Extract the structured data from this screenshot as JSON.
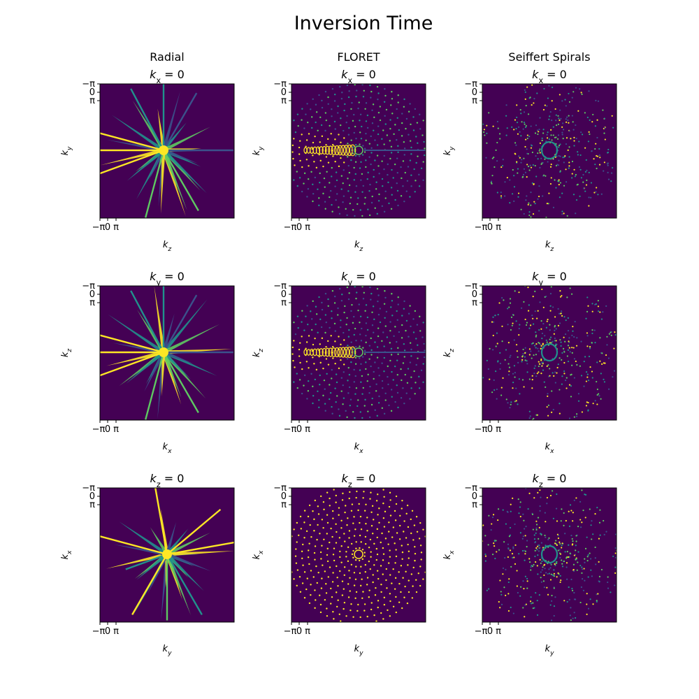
{
  "figure": {
    "title": "Inversion Time",
    "colors": {
      "background": "#440154",
      "low": "#3b528b",
      "mid": "#21918c",
      "high": "#5ec962",
      "peak": "#fde725"
    }
  },
  "chart_data": [
    {
      "type": "heatmap",
      "method": "Radial",
      "column_title": "Radial",
      "panel_title": "k_x = 0",
      "title_var": "k",
      "title_sub": "x",
      "title_eq": " = 0",
      "xlabel": "k_z",
      "ylabel": "k_y",
      "xlabel_var": "k",
      "xlabel_sub": "z",
      "ylabel_var": "k",
      "ylabel_sub": "y",
      "xticks": [
        "−π",
        "0",
        "π"
      ],
      "yticks": [
        "−π",
        "0",
        "π"
      ],
      "pattern": "spokes"
    },
    {
      "type": "heatmap",
      "method": "FLORET",
      "column_title": "FLORET",
      "panel_title": "k_x = 0",
      "title_var": "k",
      "title_sub": "x",
      "title_eq": " = 0",
      "xlabel": "k_z",
      "ylabel": "k_y",
      "xlabel_var": "k",
      "xlabel_sub": "z",
      "ylabel_var": "k",
      "ylabel_sub": "y",
      "xticks": [
        "−π",
        "0",
        "π"
      ],
      "yticks": [
        "−π",
        "0",
        "π"
      ],
      "pattern": "floret-side"
    },
    {
      "type": "heatmap",
      "method": "Seiffert Spirals",
      "column_title": "Seiffert Spirals",
      "panel_title": "k_x = 0",
      "title_var": "k",
      "title_sub": "x",
      "title_eq": " = 0",
      "xlabel": "k_z",
      "ylabel": "k_y",
      "xlabel_var": "k",
      "xlabel_sub": "z",
      "ylabel_var": "k",
      "ylabel_sub": "y",
      "xticks": [
        "−π",
        "0",
        "π"
      ],
      "yticks": [
        "−π",
        "0",
        "π"
      ],
      "pattern": "scatter"
    },
    {
      "type": "heatmap",
      "method": "Radial",
      "panel_title": "k_y = 0",
      "title_var": "k",
      "title_sub": "y",
      "title_eq": " = 0",
      "xlabel": "k_x",
      "ylabel": "k_z",
      "xlabel_var": "k",
      "xlabel_sub": "x",
      "ylabel_var": "k",
      "ylabel_sub": "z",
      "xticks": [
        "−π",
        "0",
        "π"
      ],
      "yticks": [
        "−π",
        "0",
        "π"
      ],
      "pattern": "spokes"
    },
    {
      "type": "heatmap",
      "method": "FLORET",
      "panel_title": "k_y = 0",
      "title_var": "k",
      "title_sub": "y",
      "title_eq": " = 0",
      "xlabel": "k_x",
      "ylabel": "k_z",
      "xlabel_var": "k",
      "xlabel_sub": "x",
      "ylabel_var": "k",
      "ylabel_sub": "z",
      "xticks": [
        "−π",
        "0",
        "π"
      ],
      "yticks": [
        "−π",
        "0",
        "π"
      ],
      "pattern": "floret-side"
    },
    {
      "type": "heatmap",
      "method": "Seiffert Spirals",
      "panel_title": "k_y = 0",
      "title_var": "k",
      "title_sub": "y",
      "title_eq": " = 0",
      "xlabel": "k_x",
      "ylabel": "k_z",
      "xlabel_var": "k",
      "xlabel_sub": "x",
      "ylabel_var": "k",
      "ylabel_sub": "z",
      "xticks": [
        "−π",
        "0",
        "π"
      ],
      "yticks": [
        "−π",
        "0",
        "π"
      ],
      "pattern": "scatter"
    },
    {
      "type": "heatmap",
      "method": "Radial",
      "panel_title": "k_z = 0",
      "title_var": "k",
      "title_sub": "z",
      "title_eq": " = 0",
      "xlabel": "k_y",
      "ylabel": "k_x",
      "xlabel_var": "k",
      "xlabel_sub": "y",
      "ylabel_var": "k",
      "ylabel_sub": "x",
      "xticks": [
        "−π",
        "0",
        "π"
      ],
      "yticks": [
        "−π",
        "0",
        "π"
      ],
      "pattern": "spokes-center"
    },
    {
      "type": "heatmap",
      "method": "FLORET",
      "panel_title": "k_z = 0",
      "title_var": "k",
      "title_sub": "z",
      "title_eq": " = 0",
      "xlabel": "k_y",
      "ylabel": "k_x",
      "xlabel_var": "k",
      "xlabel_sub": "y",
      "ylabel_var": "k",
      "ylabel_sub": "x",
      "xticks": [
        "−π",
        "0",
        "π"
      ],
      "yticks": [
        "−π",
        "0",
        "π"
      ],
      "pattern": "floret-axial"
    },
    {
      "type": "heatmap",
      "method": "Seiffert Spirals",
      "panel_title": "k_z = 0",
      "title_var": "k",
      "title_sub": "z",
      "title_eq": " = 0",
      "xlabel": "k_y",
      "ylabel": "k_x",
      "xlabel_var": "k",
      "xlabel_sub": "y",
      "ylabel_var": "k",
      "ylabel_sub": "x",
      "xticks": [
        "−π",
        "0",
        "π"
      ],
      "yticks": [
        "−π",
        "0",
        "π"
      ],
      "pattern": "scatter"
    }
  ]
}
